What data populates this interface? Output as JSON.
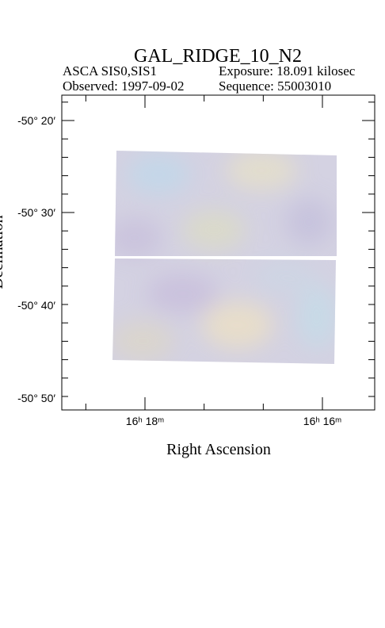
{
  "title": "GAL_RIDGE_10_N2",
  "info": {
    "instrument": "ASCA SIS0,SIS1",
    "exposure": "Exposure: 18.091 kilosec",
    "observed": "Observed: 1997-09-02",
    "sequence": "Sequence: 55003010"
  },
  "axes": {
    "y_label": "Declination",
    "x_label": "Right Ascension",
    "y_tick_labels": [
      "-50° 20′",
      "-50° 30′",
      "-50° 40′",
      "-50° 50′"
    ],
    "x_tick_labels": [
      "16ʰ 18ᵐ",
      "16ʰ 16ᵐ"
    ]
  }
}
